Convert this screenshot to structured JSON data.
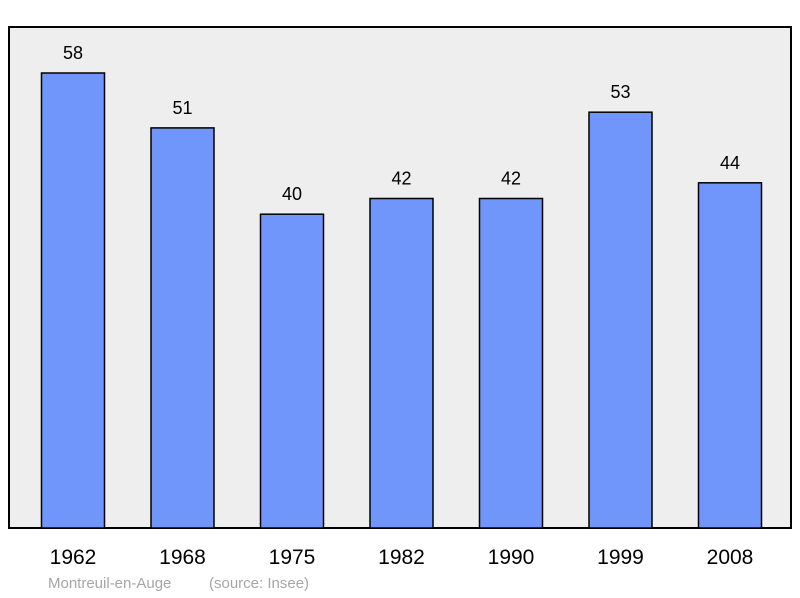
{
  "chart_data": {
    "type": "bar",
    "categories": [
      "1962",
      "1968",
      "1975",
      "1982",
      "1990",
      "1999",
      "2008"
    ],
    "values": [
      58,
      51,
      40,
      42,
      42,
      53,
      44
    ],
    "ylim": [
      0,
      64
    ],
    "grid": false,
    "legend": "none",
    "caption_place": "Montreuil-en-Auge",
    "caption_source": "(source: Insee)",
    "colors": {
      "bar_fill": "#7096fc",
      "bar_stroke": "#000000",
      "plot_bg": "#eeeeee",
      "frame": "#000000",
      "caption": "#a6a6a6"
    }
  }
}
